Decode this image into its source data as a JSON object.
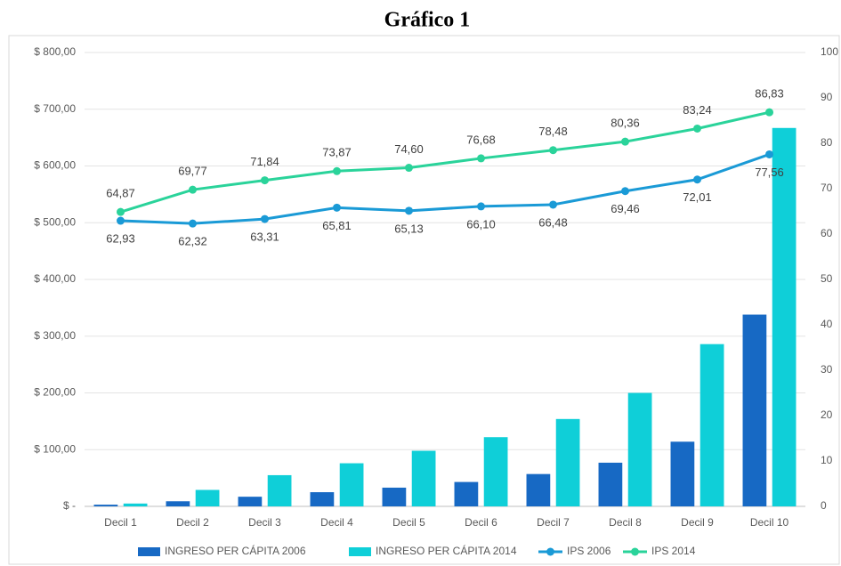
{
  "chart_data": {
    "type": "bar_line",
    "title": "Gráfico 1",
    "categories": [
      "Decil 1",
      "Decil 2",
      "Decil 3",
      "Decil 4",
      "Decil 5",
      "Decil 6",
      "Decil 7",
      "Decil 8",
      "Decil 9",
      "Decil 10"
    ],
    "ylim": [
      0,
      800
    ],
    "yticks": [
      {
        "value": 0,
        "label": "$ -"
      },
      {
        "value": 100,
        "label": "$ 100,00"
      },
      {
        "value": 200,
        "label": "$ 200,00"
      },
      {
        "value": 300,
        "label": "$ 300,00"
      },
      {
        "value": 400,
        "label": "$ 400,00"
      },
      {
        "value": 500,
        "label": "$ 500,00"
      },
      {
        "value": 600,
        "label": "$ 600,00"
      },
      {
        "value": 700,
        "label": "$ 700,00"
      },
      {
        "value": 800,
        "label": "$ 800,00"
      }
    ],
    "y2lim": [
      0,
      100
    ],
    "y2ticks": [
      0,
      10,
      20,
      30,
      40,
      50,
      60,
      70,
      80,
      90,
      100
    ],
    "grid": true,
    "legend": "bottom",
    "series": [
      {
        "name": "INGRESO PER CÁPITA 2006",
        "type": "bar",
        "color": "#1769c4",
        "values": [
          3,
          9,
          17,
          25,
          33,
          43,
          57,
          77,
          114,
          338
        ]
      },
      {
        "name": "INGRESO PER CÁPITA 2014",
        "type": "bar",
        "color": "#0fcfd8",
        "values": [
          5,
          29,
          55,
          76,
          98,
          122,
          154,
          200,
          286,
          667
        ]
      },
      {
        "name": "IPS 2006",
        "type": "line",
        "axis": "y2",
        "color": "#1a9ad6",
        "label_pos": "below",
        "values": [
          62.93,
          62.32,
          63.31,
          65.81,
          65.13,
          66.1,
          66.48,
          69.46,
          72.01,
          77.56
        ],
        "value_labels": [
          "62,93",
          "62,32",
          "63,31",
          "65,81",
          "65,13",
          "66,10",
          "66,48",
          "69,46",
          "72,01",
          "77,56"
        ]
      },
      {
        "name": "IPS 2014",
        "type": "line",
        "axis": "y2",
        "color": "#2ad39a",
        "label_pos": "above",
        "values": [
          64.87,
          69.77,
          71.84,
          73.87,
          74.6,
          76.68,
          78.48,
          80.36,
          83.24,
          86.83
        ],
        "value_labels": [
          "64,87",
          "69,77",
          "71,84",
          "73,87",
          "74,60",
          "76,68",
          "78,48",
          "80,36",
          "83,24",
          "86,83"
        ]
      }
    ]
  }
}
